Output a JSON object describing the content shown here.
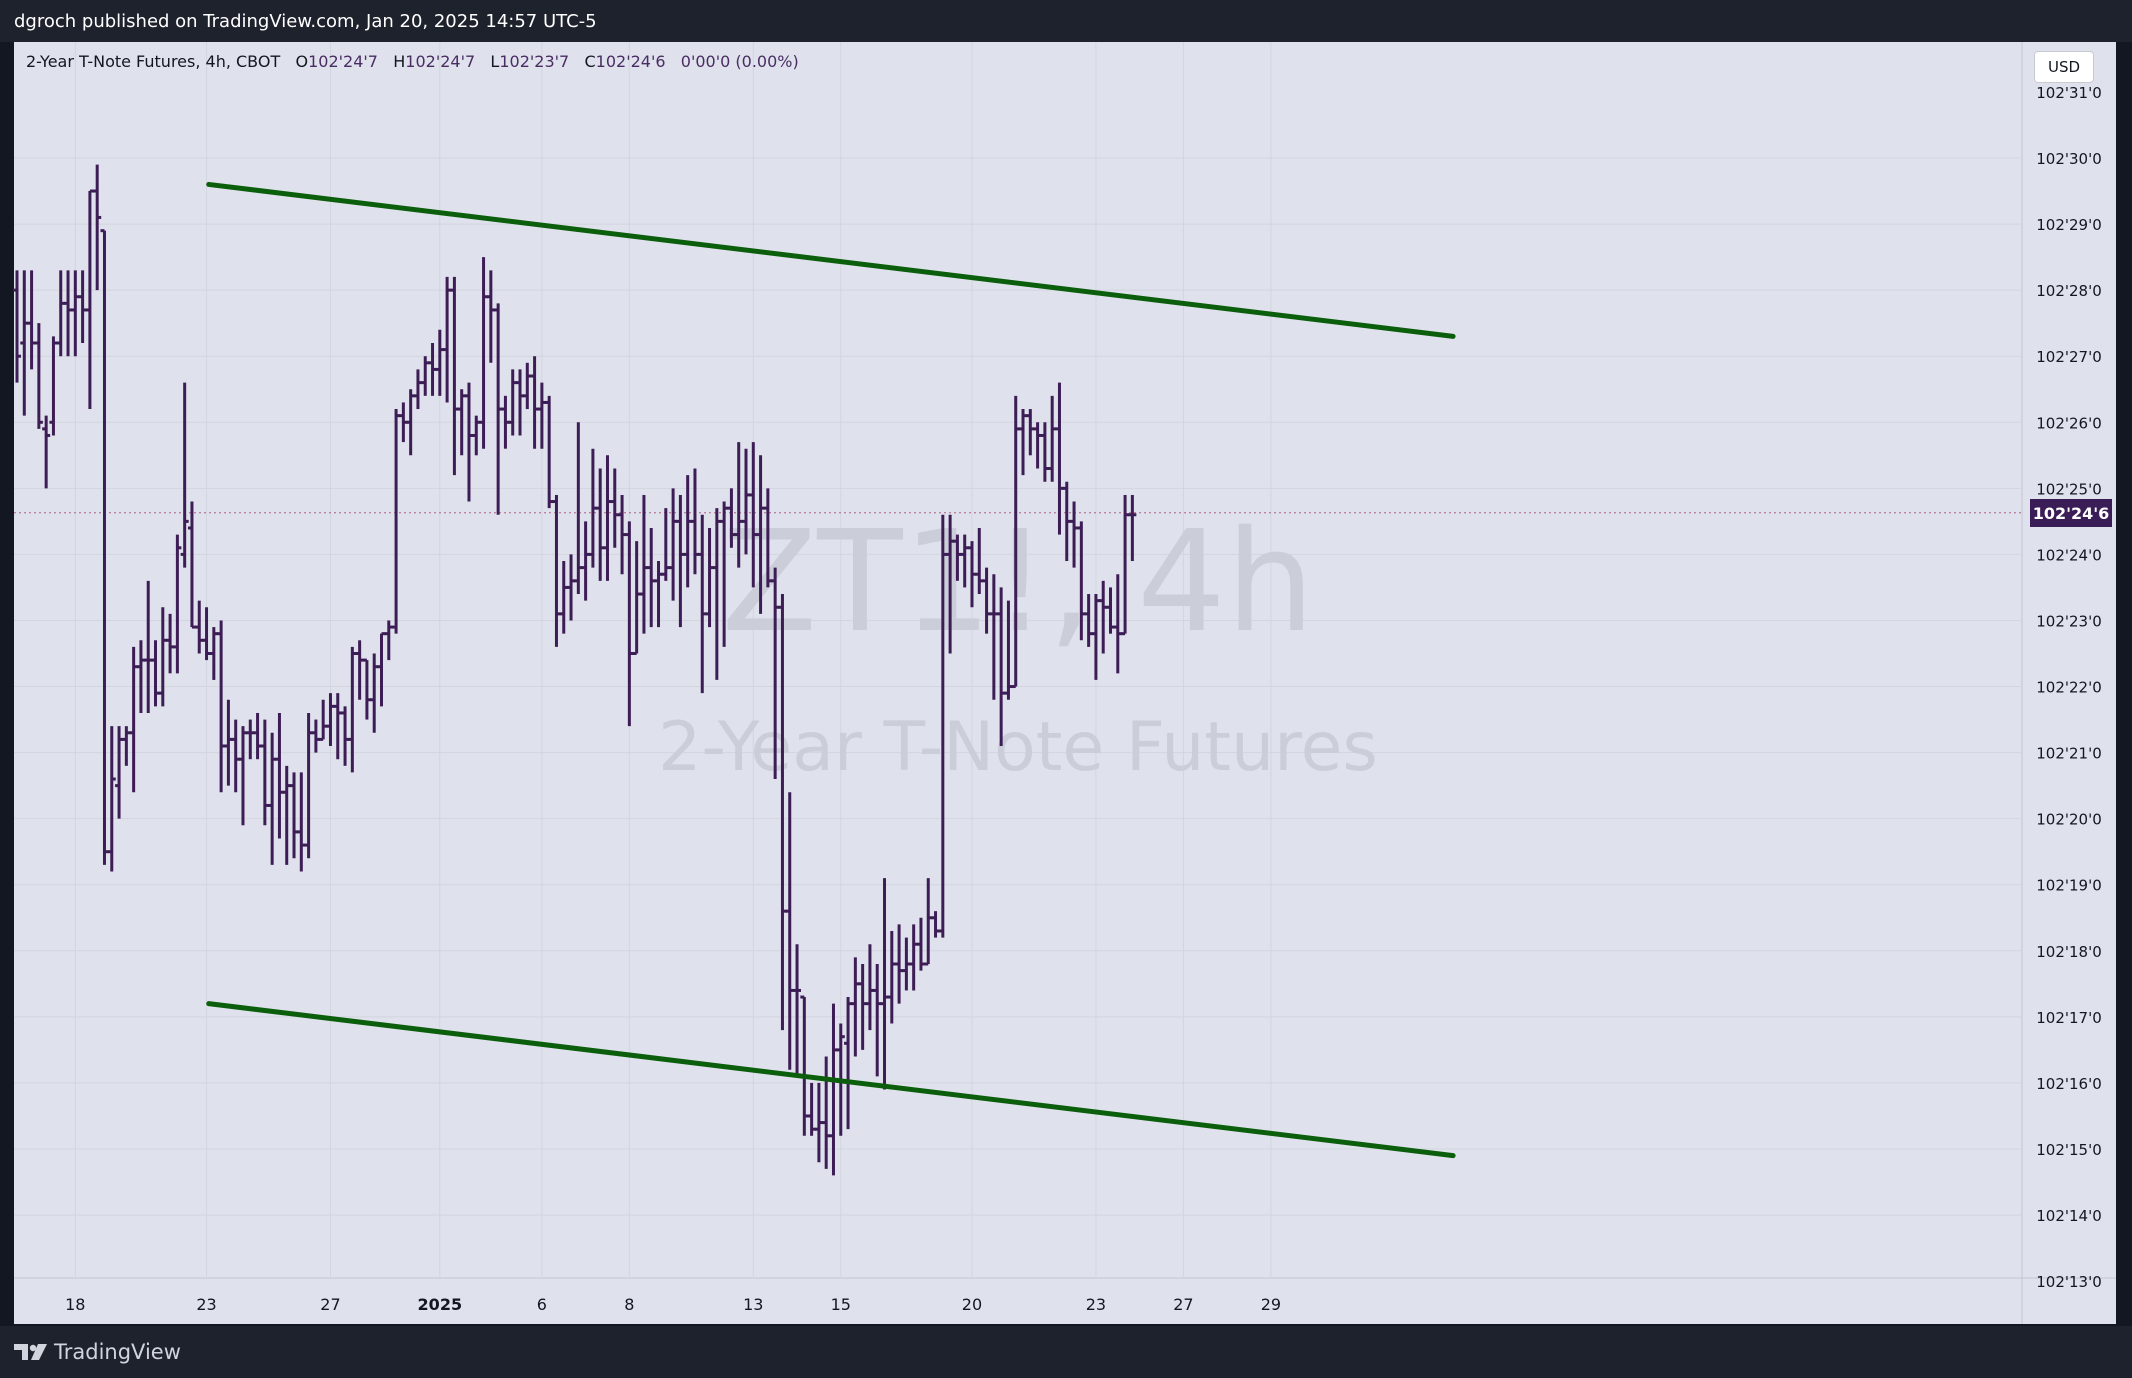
{
  "header": {
    "publisher": "dgroch published on TradingView.com, Jan 20, 2025 14:57 UTC-5"
  },
  "legend": {
    "symbol": "2-Year T-Note Futures, 4h, CBOT",
    "o_label": "O",
    "o_value": "102'24'7",
    "h_label": "H",
    "h_value": "102'24'7",
    "l_label": "L",
    "l_value": "102'23'7",
    "c_label": "C",
    "c_value": "102'24'6",
    "change": "0'00'0 (0.00%)"
  },
  "currency": "USD",
  "watermark": {
    "ticker": "ZT1!, 4h",
    "name": "2-Year T-Note Futures"
  },
  "last_price_label": "102'24'6",
  "footer": {
    "brand": "TradingView"
  },
  "colors": {
    "bars": "#3d1d55",
    "trendlines": "#0b5e0b",
    "background": "#dfe2ec",
    "last_price": "#3a1d56"
  },
  "chart_data": {
    "type": "ohlc",
    "interval": "4h",
    "ylim": [
      102.13,
      102.315
    ],
    "y_ticks": [
      {
        "v": 102.3,
        "label": "102'30'0"
      },
      {
        "v": 102.29,
        "label": "102'29'0"
      },
      {
        "v": 102.28,
        "label": "102'28'0"
      },
      {
        "v": 102.27,
        "label": "102'27'0"
      },
      {
        "v": 102.26,
        "label": "102'26'0"
      },
      {
        "v": 102.25,
        "label": "102'25'0"
      },
      {
        "v": 102.24,
        "label": "102'24'0"
      },
      {
        "v": 102.23,
        "label": "102'23'0"
      },
      {
        "v": 102.22,
        "label": "102'22'0"
      },
      {
        "v": 102.21,
        "label": "102'21'0"
      },
      {
        "v": 102.2,
        "label": "102'20'0"
      },
      {
        "v": 102.19,
        "label": "102'19'0"
      },
      {
        "v": 102.18,
        "label": "102'18'0"
      },
      {
        "v": 102.17,
        "label": "102'17'0"
      },
      {
        "v": 102.16,
        "label": "102'16'0"
      },
      {
        "v": 102.15,
        "label": "102'15'0"
      },
      {
        "v": 102.14,
        "label": "102'14'0"
      }
    ],
    "y_ticks_clipped": [
      {
        "v": 102.31,
        "label": "102'31'0"
      },
      {
        "v": 102.13,
        "label": "102'13'0"
      }
    ],
    "x_ticks": [
      {
        "i": 8,
        "label": "18",
        "bold": false
      },
      {
        "i": 26,
        "label": "23",
        "bold": false
      },
      {
        "i": 43,
        "label": "27",
        "bold": false
      },
      {
        "i": 58,
        "label": "2025",
        "bold": true
      },
      {
        "i": 72,
        "label": "6",
        "bold": false
      },
      {
        "i": 84,
        "label": "8",
        "bold": false
      },
      {
        "i": 101,
        "label": "13",
        "bold": false
      },
      {
        "i": 113,
        "label": "15",
        "bold": false
      },
      {
        "i": 131,
        "label": "20",
        "bold": false
      },
      {
        "i": 148,
        "label": "23",
        "bold": false
      },
      {
        "i": 160,
        "label": "27",
        "bold": false
      },
      {
        "i": 172,
        "label": "29",
        "bold": false
      }
    ],
    "bars": [
      [
        102.28,
        102.283,
        102.266,
        102.27
      ],
      [
        102.272,
        102.283,
        102.261,
        102.275
      ],
      [
        102.275,
        102.283,
        102.268,
        102.272
      ],
      [
        102.272,
        102.275,
        102.259,
        102.26
      ],
      [
        102.259,
        102.261,
        102.25,
        102.258
      ],
      [
        102.26,
        102.273,
        102.258,
        102.272
      ],
      [
        102.272,
        102.283,
        102.27,
        102.278
      ],
      [
        102.278,
        102.283,
        102.27,
        102.277
      ],
      [
        102.277,
        102.283,
        102.27,
        102.279
      ],
      [
        102.279,
        102.283,
        102.272,
        102.277
      ],
      [
        102.277,
        102.285,
        102.262,
        102.295
      ],
      [
        102.295,
        102.299,
        102.28,
        102.291
      ],
      [
        102.289,
        102.289,
        102.193,
        102.195
      ],
      [
        102.195,
        102.214,
        102.192,
        102.206
      ],
      [
        102.205,
        102.214,
        102.2,
        102.212
      ],
      [
        102.212,
        102.214,
        102.208,
        102.213
      ],
      [
        102.213,
        102.226,
        102.204,
        102.223
      ],
      [
        102.223,
        102.227,
        102.216,
        102.224
      ],
      [
        102.224,
        102.236,
        102.216,
        102.224
      ],
      [
        102.224,
        102.227,
        102.217,
        102.219
      ],
      [
        102.219,
        102.232,
        102.217,
        102.227
      ],
      [
        102.227,
        102.231,
        102.222,
        102.226
      ],
      [
        102.226,
        102.243,
        102.222,
        102.241
      ],
      [
        102.24,
        102.266,
        102.238,
        102.245
      ],
      [
        102.244,
        102.248,
        102.232,
        102.229
      ],
      [
        102.229,
        102.233,
        102.225,
        102.227
      ],
      [
        102.227,
        102.232,
        102.224,
        102.225
      ],
      [
        102.225,
        102.229,
        102.221,
        102.228
      ],
      [
        102.228,
        102.23,
        102.204,
        102.211
      ],
      [
        102.211,
        102.218,
        102.205,
        102.212
      ],
      [
        102.212,
        102.215,
        102.204,
        102.209
      ],
      [
        102.209,
        102.214,
        102.199,
        102.213
      ],
      [
        102.213,
        102.215,
        102.209,
        102.213
      ],
      [
        102.213,
        102.216,
        102.209,
        102.211
      ],
      [
        102.211,
        102.215,
        102.199,
        102.202
      ],
      [
        102.202,
        102.213,
        102.193,
        102.209
      ],
      [
        102.209,
        102.216,
        102.197,
        102.204
      ],
      [
        102.204,
        102.208,
        102.193,
        102.205
      ],
      [
        102.205,
        102.207,
        102.194,
        102.198
      ],
      [
        102.198,
        102.207,
        102.192,
        102.196
      ],
      [
        102.196,
        102.216,
        102.194,
        102.213
      ],
      [
        102.213,
        102.215,
        102.21,
        102.212
      ],
      [
        102.212,
        102.218,
        102.212,
        102.214
      ],
      [
        102.214,
        102.219,
        102.211,
        102.217
      ],
      [
        102.217,
        102.219,
        102.209,
        102.216
      ],
      [
        102.216,
        102.217,
        102.208,
        102.212
      ],
      [
        102.212,
        102.226,
        102.207,
        102.225
      ],
      [
        102.225,
        102.227,
        102.218,
        102.224
      ],
      [
        102.224,
        102.224,
        102.215,
        102.218
      ],
      [
        102.218,
        102.225,
        102.213,
        102.223
      ],
      [
        102.223,
        102.227,
        102.217,
        102.228
      ],
      [
        102.228,
        102.23,
        102.224,
        102.229
      ],
      [
        102.229,
        102.262,
        102.228,
        102.261
      ],
      [
        102.261,
        102.263,
        102.257,
        102.26
      ],
      [
        102.26,
        102.265,
        102.255,
        102.264
      ],
      [
        102.264,
        102.268,
        102.262,
        102.266
      ],
      [
        102.266,
        102.27,
        102.264,
        102.269
      ],
      [
        102.269,
        102.272,
        102.264,
        102.268
      ],
      [
        102.268,
        102.274,
        102.264,
        102.271
      ],
      [
        102.271,
        102.282,
        102.263,
        102.28
      ],
      [
        102.28,
        102.282,
        102.252,
        102.262
      ],
      [
        102.262,
        102.265,
        102.255,
        102.264
      ],
      [
        102.264,
        102.266,
        102.248,
        102.258
      ],
      [
        102.258,
        102.261,
        102.255,
        102.26
      ],
      [
        102.26,
        102.285,
        102.256,
        102.279
      ],
      [
        102.279,
        102.283,
        102.269,
        102.277
      ],
      [
        102.277,
        102.278,
        102.246,
        102.262
      ],
      [
        102.262,
        102.264,
        102.256,
        102.26
      ],
      [
        102.26,
        102.268,
        102.258,
        102.266
      ],
      [
        102.266,
        102.268,
        102.258,
        102.264
      ],
      [
        102.264,
        102.269,
        102.262,
        102.267
      ],
      [
        102.267,
        102.27,
        102.256,
        102.262
      ],
      [
        102.262,
        102.266,
        102.256,
        102.263
      ],
      [
        102.263,
        102.264,
        102.247,
        102.248
      ],
      [
        102.248,
        102.249,
        102.226,
        102.231
      ],
      [
        102.231,
        102.239,
        102.228,
        102.235
      ],
      [
        102.235,
        102.24,
        102.23,
        102.236
      ],
      [
        102.236,
        102.26,
        102.234,
        102.238
      ],
      [
        102.238,
        102.245,
        102.233,
        102.24
      ],
      [
        102.24,
        102.256,
        102.238,
        102.247
      ],
      [
        102.247,
        102.253,
        102.236,
        102.241
      ],
      [
        102.241,
        102.255,
        102.236,
        102.248
      ],
      [
        102.248,
        102.253,
        102.241,
        102.246
      ],
      [
        102.246,
        102.249,
        102.237,
        102.243
      ],
      [
        102.243,
        102.245,
        102.214,
        102.225
      ],
      [
        102.225,
        102.242,
        102.225,
        102.234
      ],
      [
        102.234,
        102.249,
        102.228,
        102.238
      ],
      [
        102.238,
        102.244,
        102.229,
        102.236
      ],
      [
        102.236,
        102.239,
        102.229,
        102.237
      ],
      [
        102.237,
        102.247,
        102.236,
        102.238
      ],
      [
        102.238,
        102.25,
        102.233,
        102.245
      ],
      [
        102.245,
        102.249,
        102.229,
        102.24
      ],
      [
        102.24,
        102.252,
        102.235,
        102.245
      ],
      [
        102.245,
        102.253,
        102.237,
        102.24
      ],
      [
        102.24,
        102.246,
        102.219,
        102.231
      ],
      [
        102.231,
        102.244,
        102.229,
        102.238
      ],
      [
        102.238,
        102.247,
        102.221,
        102.245
      ],
      [
        102.245,
        102.248,
        102.226,
        102.247
      ],
      [
        102.247,
        102.25,
        102.241,
        102.243
      ],
      [
        102.243,
        102.257,
        102.238,
        102.245
      ],
      [
        102.245,
        102.256,
        102.24,
        102.249
      ],
      [
        102.249,
        102.257,
        102.235,
        102.243
      ],
      [
        102.243,
        102.255,
        102.231,
        102.247
      ],
      [
        102.247,
        102.25,
        102.235,
        102.236
      ],
      [
        102.236,
        102.238,
        102.206,
        102.232
      ],
      [
        102.232,
        102.234,
        102.168,
        102.186
      ],
      [
        102.186,
        102.204,
        102.162,
        102.174
      ],
      [
        102.174,
        102.181,
        102.161,
        102.174
      ],
      [
        102.173,
        102.171,
        102.152,
        102.155
      ],
      [
        102.155,
        102.16,
        102.152,
        102.153
      ],
      [
        102.153,
        102.16,
        102.148,
        102.154
      ],
      [
        102.154,
        102.164,
        102.147,
        102.152
      ],
      [
        102.152,
        102.172,
        102.146,
        102.165
      ],
      [
        102.165,
        102.169,
        102.152,
        102.167
      ],
      [
        102.166,
        102.173,
        102.153,
        102.172
      ],
      [
        102.172,
        102.179,
        102.164,
        102.175
      ],
      [
        102.175,
        102.178,
        102.165,
        102.172
      ],
      [
        102.172,
        102.181,
        102.168,
        102.174
      ],
      [
        102.174,
        102.178,
        102.161,
        102.172
      ],
      [
        102.172,
        102.191,
        102.159,
        102.173
      ],
      [
        102.173,
        102.183,
        102.169,
        102.178
      ],
      [
        102.178,
        102.184,
        102.172,
        102.177
      ],
      [
        102.177,
        102.182,
        102.174,
        102.178
      ],
      [
        102.178,
        102.184,
        102.174,
        102.181
      ],
      [
        102.181,
        102.185,
        102.177,
        102.178
      ],
      [
        102.178,
        102.191,
        102.178,
        102.185
      ],
      [
        102.185,
        102.186,
        102.182,
        102.183
      ],
      [
        102.183,
        102.246,
        102.182,
        102.24
      ],
      [
        102.24,
        102.246,
        102.225,
        102.242
      ],
      [
        102.242,
        102.243,
        102.236,
        102.24
      ],
      [
        102.24,
        102.243,
        102.235,
        102.241
      ],
      [
        102.241,
        102.242,
        102.232,
        102.237
      ],
      [
        102.237,
        102.244,
        102.234,
        102.236
      ],
      [
        102.236,
        102.238,
        102.228,
        102.231
      ],
      [
        102.231,
        102.237,
        102.218,
        102.231
      ],
      [
        102.231,
        102.235,
        102.211,
        102.219
      ],
      [
        102.219,
        102.233,
        102.218,
        102.22
      ],
      [
        102.22,
        102.264,
        102.22,
        102.259
      ],
      [
        102.259,
        102.262,
        102.252,
        102.261
      ],
      [
        102.261,
        102.262,
        102.255,
        102.259
      ],
      [
        102.259,
        102.26,
        102.253,
        102.258
      ],
      [
        102.258,
        102.26,
        102.251,
        102.253
      ],
      [
        102.253,
        102.264,
        102.251,
        102.259
      ],
      [
        102.259,
        102.266,
        102.243,
        102.25
      ],
      [
        102.25,
        102.251,
        102.239,
        102.245
      ],
      [
        102.245,
        102.248,
        102.238,
        102.244
      ],
      [
        102.244,
        102.245,
        102.227,
        102.231
      ],
      [
        102.231,
        102.234,
        102.226,
        102.228
      ],
      [
        102.228,
        102.234,
        102.221,
        102.233
      ],
      [
        102.233,
        102.236,
        102.225,
        102.232
      ],
      [
        102.232,
        102.235,
        102.228,
        102.229
      ],
      [
        102.229,
        102.237,
        102.222,
        102.228
      ],
      [
        102.228,
        102.249,
        102.23,
        102.246
      ],
      [
        102.246,
        102.249,
        102.239,
        102.246
      ]
    ],
    "last_price": 102.2463,
    "trendlines": [
      {
        "name": "upper",
        "from": {
          "i": 26.3,
          "v": 102.296
        },
        "to": {
          "i": 197,
          "v": 102.273
        }
      },
      {
        "name": "lower",
        "from": {
          "i": 26.3,
          "v": 102.172
        },
        "to": {
          "i": 197,
          "v": 102.149
        }
      }
    ]
  }
}
